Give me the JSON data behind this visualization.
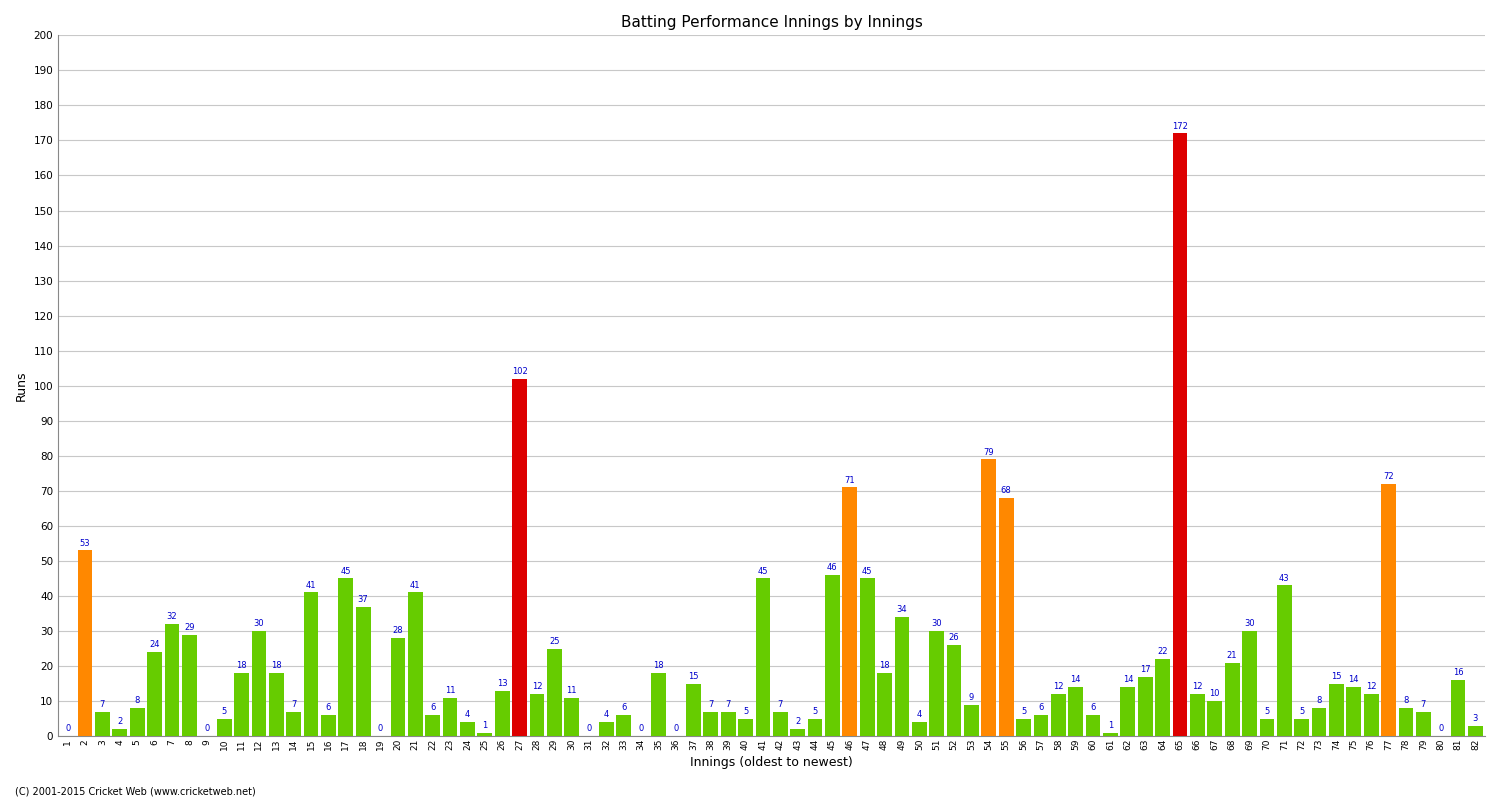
{
  "innings": [
    1,
    2,
    3,
    4,
    5,
    6,
    7,
    8,
    9,
    10,
    11,
    12,
    13,
    14,
    15,
    16,
    17,
    18,
    19,
    20,
    21,
    22,
    23,
    24,
    25,
    26,
    27,
    28,
    29,
    30,
    31,
    32,
    33,
    34,
    35,
    36,
    37,
    38,
    39,
    40,
    41,
    42,
    43,
    44,
    45,
    46,
    47,
    48,
    49,
    50,
    51,
    52,
    53,
    54,
    55,
    56,
    57,
    58,
    59,
    60,
    61,
    62,
    63,
    64,
    65,
    66,
    67,
    68,
    69,
    70,
    71,
    72,
    73,
    74,
    75,
    76,
    77,
    78,
    79,
    80,
    81,
    82
  ],
  "scores": [
    0,
    53,
    7,
    2,
    8,
    24,
    32,
    29,
    0,
    5,
    18,
    30,
    18,
    7,
    41,
    6,
    45,
    37,
    0,
    28,
    41,
    6,
    11,
    4,
    1,
    13,
    102,
    12,
    25,
    11,
    0,
    4,
    6,
    0,
    18,
    0,
    15,
    7,
    7,
    5,
    45,
    7,
    2,
    5,
    46,
    71,
    45,
    18,
    34,
    4,
    30,
    26,
    9,
    79,
    68,
    5,
    6,
    12,
    14,
    6,
    1,
    14,
    17,
    22,
    172,
    12,
    10,
    21,
    30,
    5,
    43,
    5,
    8,
    15,
    14,
    12,
    72,
    8,
    7,
    0,
    16,
    3
  ],
  "colors": [
    "green",
    "orange",
    "green",
    "green",
    "green",
    "green",
    "green",
    "green",
    "green",
    "green",
    "green",
    "green",
    "green",
    "green",
    "green",
    "green",
    "green",
    "green",
    "green",
    "green",
    "green",
    "green",
    "green",
    "green",
    "green",
    "green",
    "red",
    "green",
    "green",
    "green",
    "green",
    "green",
    "green",
    "green",
    "green",
    "green",
    "green",
    "green",
    "green",
    "green",
    "green",
    "green",
    "green",
    "green",
    "green",
    "orange",
    "green",
    "green",
    "green",
    "green",
    "green",
    "green",
    "green",
    "orange",
    "orange",
    "green",
    "green",
    "green",
    "green",
    "green",
    "green",
    "green",
    "green",
    "green",
    "red",
    "green",
    "green",
    "green",
    "green",
    "green",
    "green",
    "green",
    "green",
    "green",
    "green",
    "green",
    "orange",
    "green",
    "green",
    "green",
    "green",
    "green"
  ],
  "title": "Batting Performance Innings by Innings",
  "ylabel": "Runs",
  "xlabel": "Innings (oldest to newest)",
  "ylim": [
    0,
    200
  ],
  "yticks": [
    0,
    10,
    20,
    30,
    40,
    50,
    60,
    70,
    80,
    90,
    100,
    110,
    120,
    130,
    140,
    150,
    160,
    170,
    180,
    190,
    200
  ],
  "bg_color": "#ffffff",
  "grid_color": "#c8c8c8",
  "bar_width": 0.85,
  "label_color": "#0000cc",
  "label_fontsize": 6.0,
  "axis_label_fontsize": 9,
  "title_fontsize": 11,
  "tick_fontsize": 6.5,
  "footer": "(C) 2001-2015 Cricket Web (www.cricketweb.net)"
}
